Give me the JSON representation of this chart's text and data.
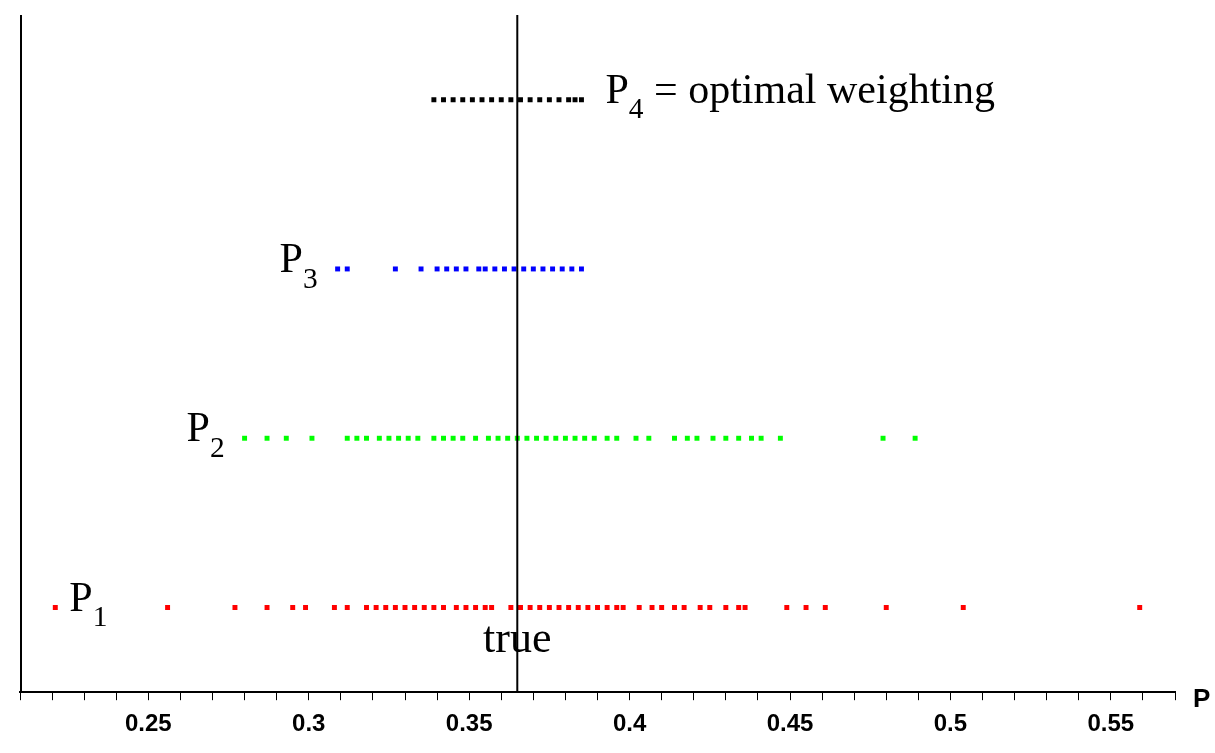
{
  "chart_data": {
    "type": "scatter",
    "orientation": "horizontal",
    "xlabel": "P",
    "xlim": [
      0.21,
      0.57
    ],
    "categories": [
      "P$_{4}$ = optimal weighting",
      "P$_{3}$",
      "P$_{2}$",
      "P$_{1}$"
    ],
    "xticks": [
      {
        "value": 0.21,
        "label": null
      },
      {
        "value": 0.22,
        "label": null
      },
      {
        "value": 0.23,
        "label": null
      },
      {
        "value": 0.24,
        "label": null
      },
      {
        "value": 0.25,
        "label": "0.25"
      },
      {
        "value": 0.26,
        "label": null
      },
      {
        "value": 0.27,
        "label": null
      },
      {
        "value": 0.28,
        "label": null
      },
      {
        "value": 0.29,
        "label": null
      },
      {
        "value": 0.3,
        "label": "0.3"
      },
      {
        "value": 0.31,
        "label": null
      },
      {
        "value": 0.32,
        "label": null
      },
      {
        "value": 0.33,
        "label": null
      },
      {
        "value": 0.34,
        "label": null
      },
      {
        "value": 0.35,
        "label": "0.35"
      },
      {
        "value": 0.36,
        "label": null
      },
      {
        "value": 0.37,
        "label": null
      },
      {
        "value": 0.38,
        "label": null
      },
      {
        "value": 0.39,
        "label": null
      },
      {
        "value": 0.4,
        "label": "0.4"
      },
      {
        "value": 0.41,
        "label": null
      },
      {
        "value": 0.42,
        "label": null
      },
      {
        "value": 0.43,
        "label": null
      },
      {
        "value": 0.44,
        "label": null
      },
      {
        "value": 0.45,
        "label": "0.45"
      },
      {
        "value": 0.46,
        "label": null
      },
      {
        "value": 0.47,
        "label": null
      },
      {
        "value": 0.48,
        "label": null
      },
      {
        "value": 0.49,
        "label": null
      },
      {
        "value": 0.5,
        "label": "0.5"
      },
      {
        "value": 0.51,
        "label": null
      },
      {
        "value": 0.52,
        "label": null
      },
      {
        "value": 0.53,
        "label": null
      },
      {
        "value": 0.54,
        "label": null
      },
      {
        "value": 0.55,
        "label": "0.55"
      },
      {
        "value": 0.56,
        "label": null
      },
      {
        "value": 0.57,
        "label": null
      }
    ],
    "marker": "square",
    "grid": false,
    "legend": false,
    "ref_lines": [
      {
        "axis": "x",
        "value": 0.365,
        "label": "true",
        "color": "#000000"
      }
    ],
    "series": [
      {
        "color": "#ff0000",
        "values": [
          0.221,
          0.256,
          0.277,
          0.287,
          0.295,
          0.299,
          0.308,
          0.312,
          0.318,
          0.321,
          0.324,
          0.327,
          0.33,
          0.333,
          0.336,
          0.339,
          0.342,
          0.346,
          0.349,
          0.352,
          0.355,
          0.357,
          0.363,
          0.366,
          0.369,
          0.372,
          0.375,
          0.378,
          0.381,
          0.384,
          0.387,
          0.39,
          0.393,
          0.396,
          0.398,
          0.403,
          0.407,
          0.41,
          0.414,
          0.417,
          0.422,
          0.425,
          0.43,
          0.434,
          0.436,
          0.449,
          0.455,
          0.461,
          0.48,
          0.504,
          0.559
        ],
        "x": [
          "P$_{1}$",
          "P$_{1}$",
          "P$_{1}$",
          "P$_{1}$",
          "P$_{1}$",
          "P$_{1}$",
          "P$_{1}$",
          "P$_{1}$",
          "P$_{1}$",
          "P$_{1}$",
          "P$_{1}$",
          "P$_{1}$",
          "P$_{1}$",
          "P$_{1}$",
          "P$_{1}$",
          "P$_{1}$",
          "P$_{1}$",
          "P$_{1}$",
          "P$_{1}$",
          "P$_{1}$",
          "P$_{1}$",
          "P$_{1}$",
          "P$_{1}$",
          "P$_{1}$",
          "P$_{1}$",
          "P$_{1}$",
          "P$_{1}$",
          "P$_{1}$",
          "P$_{1}$",
          "P$_{1}$",
          "P$_{1}$",
          "P$_{1}$",
          "P$_{1}$",
          "P$_{1}$",
          "P$_{1}$",
          "P$_{1}$",
          "P$_{1}$",
          "P$_{1}$",
          "P$_{1}$",
          "P$_{1}$",
          "P$_{1}$",
          "P$_{1}$",
          "P$_{1}$",
          "P$_{1}$",
          "P$_{1}$",
          "P$_{1}$",
          "P$_{1}$",
          "P$_{1}$",
          "P$_{1}$",
          "P$_{1}$",
          "P$_{1}$"
        ]
      },
      {
        "color": "#00ff00",
        "values": [
          0.28,
          0.287,
          0.293,
          0.301,
          0.312,
          0.315,
          0.318,
          0.322,
          0.325,
          0.328,
          0.331,
          0.334,
          0.339,
          0.342,
          0.345,
          0.348,
          0.352,
          0.356,
          0.359,
          0.362,
          0.365,
          0.368,
          0.371,
          0.374,
          0.377,
          0.38,
          0.383,
          0.386,
          0.389,
          0.393,
          0.396,
          0.402,
          0.406,
          0.414,
          0.418,
          0.421,
          0.426,
          0.43,
          0.434,
          0.438,
          0.441,
          0.447,
          0.479,
          0.489
        ],
        "x": [
          "P$_{2}$",
          "P$_{2}$",
          "P$_{2}$",
          "P$_{2}$",
          "P$_{2}$",
          "P$_{2}$",
          "P$_{2}$",
          "P$_{2}$",
          "P$_{2}$",
          "P$_{2}$",
          "P$_{2}$",
          "P$_{2}$",
          "P$_{2}$",
          "P$_{2}$",
          "P$_{2}$",
          "P$_{2}$",
          "P$_{2}$",
          "P$_{2}$",
          "P$_{2}$",
          "P$_{2}$",
          "P$_{2}$",
          "P$_{2}$",
          "P$_{2}$",
          "P$_{2}$",
          "P$_{2}$",
          "P$_{2}$",
          "P$_{2}$",
          "P$_{2}$",
          "P$_{2}$",
          "P$_{2}$",
          "P$_{2}$",
          "P$_{2}$",
          "P$_{2}$",
          "P$_{2}$",
          "P$_{2}$",
          "P$_{2}$",
          "P$_{2}$",
          "P$_{2}$",
          "P$_{2}$",
          "P$_{2}$",
          "P$_{2}$",
          "P$_{2}$",
          "P$_{2}$",
          "P$_{2}$"
        ]
      },
      {
        "color": "#0000ff",
        "values": [
          0.309,
          0.312,
          0.327,
          0.335,
          0.34,
          0.343,
          0.346,
          0.349,
          0.353,
          0.355,
          0.358,
          0.361,
          0.364,
          0.367,
          0.37,
          0.373,
          0.376,
          0.379,
          0.382,
          0.385
        ],
        "x": [
          "P$_{3}$",
          "P$_{3}$",
          "P$_{3}$",
          "P$_{3}$",
          "P$_{3}$",
          "P$_{3}$",
          "P$_{3}$",
          "P$_{3}$",
          "P$_{3}$",
          "P$_{3}$",
          "P$_{3}$",
          "P$_{3}$",
          "P$_{3}$",
          "P$_{3}$",
          "P$_{3}$",
          "P$_{3}$",
          "P$_{3}$",
          "P$_{3}$",
          "P$_{3}$",
          "P$_{3}$"
        ]
      },
      {
        "color": "#000000",
        "values": [
          0.339,
          0.342,
          0.345,
          0.348,
          0.351,
          0.354,
          0.357,
          0.36,
          0.363,
          0.366,
          0.369,
          0.372,
          0.375,
          0.378,
          0.381,
          0.383,
          0.385
        ],
        "x": [
          "P$_{4}$ = optimal weighting",
          "P$_{4}$ = optimal weighting",
          "P$_{4}$ = optimal weighting",
          "P$_{4}$ = optimal weighting",
          "P$_{4}$ = optimal weighting",
          "P$_{4}$ = optimal weighting",
          "P$_{4}$ = optimal weighting",
          "P$_{4}$ = optimal weighting",
          "P$_{4}$ = optimal weighting",
          "P$_{4}$ = optimal weighting",
          "P$_{4}$ = optimal weighting",
          "P$_{4}$ = optimal weighting",
          "P$_{4}$ = optimal weighting",
          "P$_{4}$ = optimal weighting",
          "P$_{4}$ = optimal weighting",
          "P$_{4}$ = optimal weighting",
          "P$_{4}$ = optimal weighting"
        ]
      }
    ]
  }
}
